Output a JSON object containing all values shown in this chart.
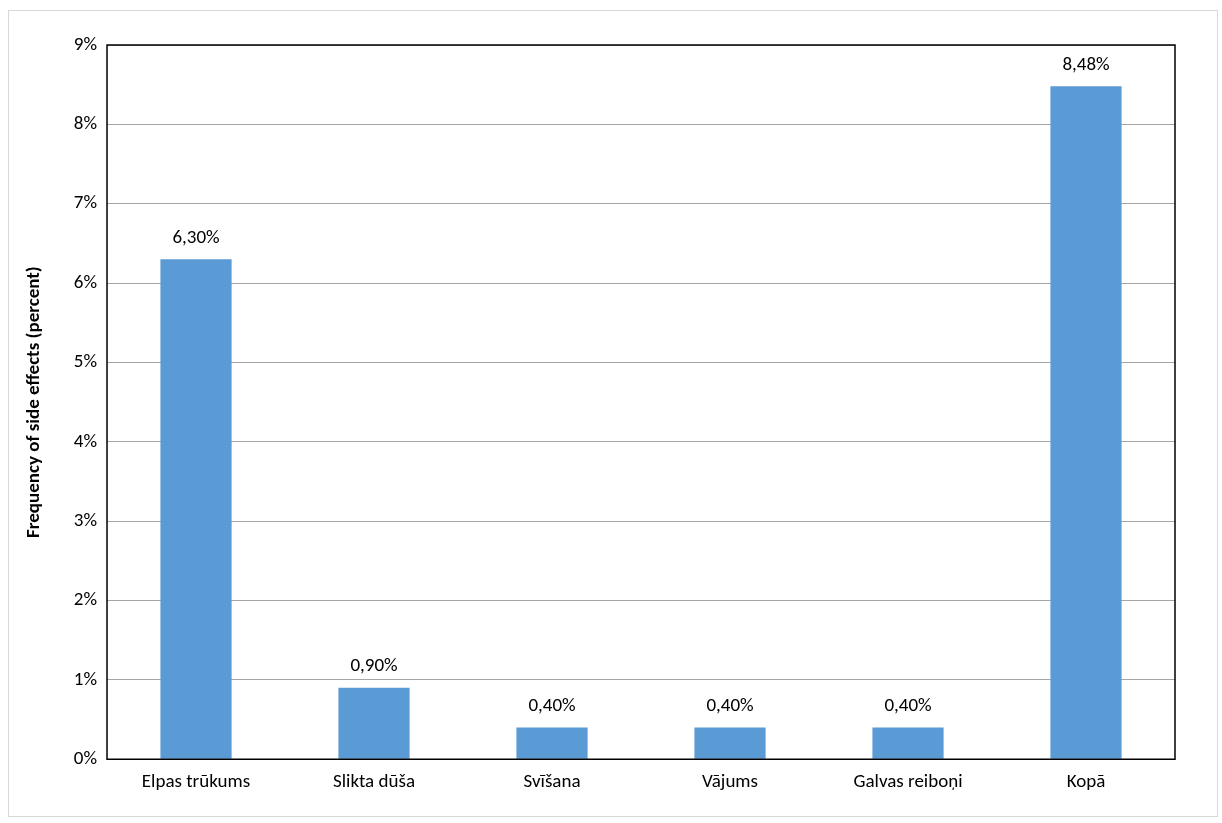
{
  "chart_data": {
    "type": "bar",
    "ylabel": "Frequency of side effects (percent)",
    "categories": [
      "Elpas trūkums",
      "Slikta dūša",
      "Svīšana",
      "Vājums",
      "Galvas reiboņi",
      "Kopā"
    ],
    "values": [
      6.3,
      0.9,
      0.4,
      0.4,
      0.4,
      8.48
    ],
    "value_labels": [
      "6,30%",
      "0,90%",
      "0,40%",
      "0,40%",
      "0,40%",
      "8,48%"
    ],
    "color": "#5b9bd5",
    "ylim": [
      0,
      9
    ],
    "yticks": [
      {
        "value": 0,
        "label": "0%"
      },
      {
        "value": 1,
        "label": "1%"
      },
      {
        "value": 2,
        "label": "2%"
      },
      {
        "value": 3,
        "label": "3%"
      },
      {
        "value": 4,
        "label": "4%"
      },
      {
        "value": 5,
        "label": "5%"
      },
      {
        "value": 6,
        "label": "6%"
      },
      {
        "value": 7,
        "label": "7%"
      },
      {
        "value": 8,
        "label": "8%"
      },
      {
        "value": 9,
        "label": "9%"
      }
    ],
    "grid": "y",
    "legend": false
  }
}
